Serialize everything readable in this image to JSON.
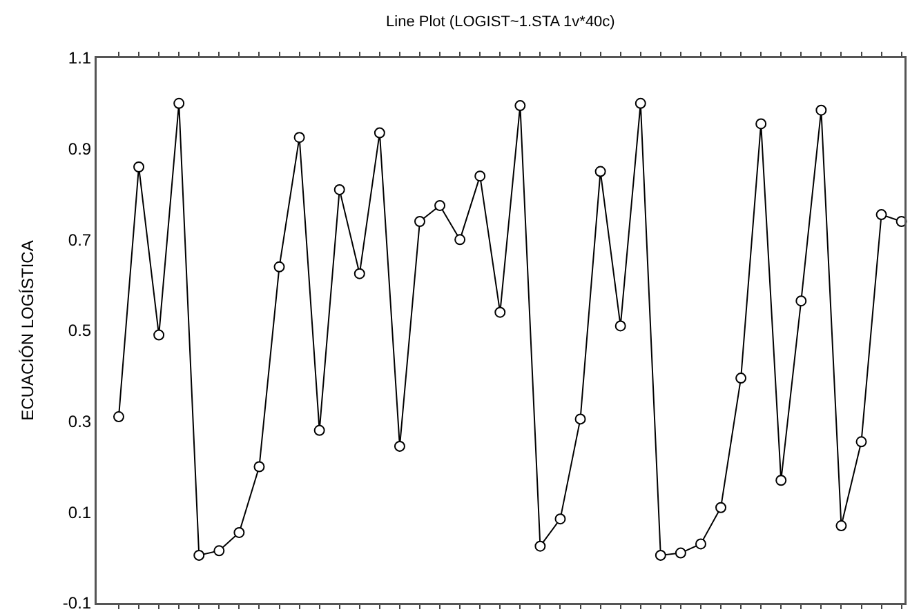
{
  "chart_data": {
    "type": "line",
    "title": "Line Plot (LOGIST~1.STA 1v*40c)",
    "ylabel": "ECUACIÓN LOGÍSTICA",
    "categories": [
      null,
      null,
      null,
      null,
      null,
      null,
      null,
      null,
      null,
      null,
      null,
      null,
      null,
      null,
      null,
      null,
      null,
      null,
      null,
      null,
      null,
      null,
      null,
      null,
      null,
      null,
      null,
      null,
      null,
      null,
      null,
      null,
      null,
      null,
      null,
      null,
      null,
      null,
      null,
      null
    ],
    "series": [
      {
        "color": "#000000",
        "values": [
          0.31,
          0.86,
          0.49,
          1.0,
          0.005,
          0.015,
          0.055,
          0.2,
          0.64,
          0.925,
          0.28,
          0.81,
          0.625,
          0.935,
          0.245,
          0.74,
          0.775,
          0.7,
          0.84,
          0.54,
          0.995,
          0.025,
          0.085,
          0.305,
          0.85,
          0.51,
          1.0,
          0.005,
          0.01,
          0.03,
          0.11,
          0.395,
          0.955,
          0.17,
          0.565,
          0.985,
          0.07,
          0.255,
          0.755,
          0.74
        ]
      }
    ],
    "ylim": [
      -0.1,
      1.1
    ],
    "yticks": [
      -0.1,
      0.1,
      0.3,
      0.5,
      0.7,
      0.9,
      1.1
    ],
    "grid": false,
    "marker": "circle",
    "line_style": "solid",
    "tick_labels": "y"
  }
}
